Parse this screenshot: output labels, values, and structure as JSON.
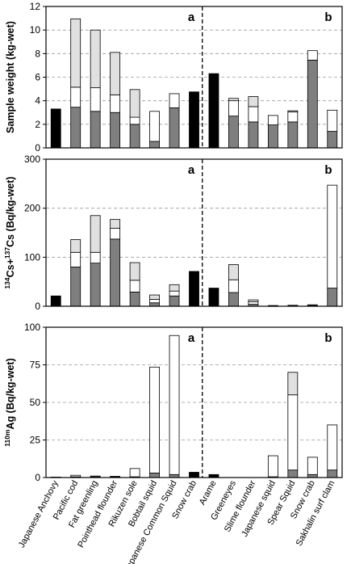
{
  "chart_data": [
    {
      "type": "bar",
      "stacked": true,
      "ylabel": "Sample weight (kg-wet)",
      "ylim": [
        0,
        12
      ],
      "yticks": [
        "0",
        "2",
        "4",
        "6",
        "8",
        "10",
        "12"
      ],
      "panel_labels": [
        "a",
        "b"
      ],
      "grid": "horizontal dashed",
      "series": [
        {
          "color": "#7f7f7f",
          "values": [
            3.3,
            3.45,
            3.1,
            3.0,
            2.0,
            0.55,
            3.4,
            4.75,
            6.3,
            2.7,
            2.2,
            1.95,
            2.2,
            7.45,
            1.4
          ]
        },
        {
          "color": "#ffffff",
          "values": [
            0,
            1.7,
            2.0,
            1.5,
            0.6,
            2.55,
            1.2,
            0,
            0,
            1.3,
            1.3,
            0.8,
            0.85,
            0.8,
            1.8
          ]
        },
        {
          "color": "#e0e0e0",
          "values": [
            0,
            5.8,
            4.9,
            3.6,
            2.35,
            0,
            0,
            0,
            0,
            0.2,
            0.85,
            0,
            0.1,
            0,
            0
          ]
        }
      ],
      "solid_black": [
        0,
        7,
        8
      ]
    },
    {
      "type": "bar",
      "stacked": true,
      "ylabel": "134Cs+137Cs (Bq/kg-wet)",
      "ylim": [
        0,
        300
      ],
      "yticks": [
        "0",
        "100",
        "200",
        "300"
      ],
      "panel_labels": [
        "a",
        "b"
      ],
      "grid": "horizontal dashed",
      "series": [
        {
          "color": "#7f7f7f",
          "values": [
            21,
            80,
            88,
            137,
            29,
            7,
            21,
            71,
            37,
            28,
            4,
            0.5,
            1,
            1.5,
            37
          ]
        },
        {
          "color": "#ffffff",
          "values": [
            0,
            30,
            22,
            22,
            24,
            7,
            10,
            0,
            0,
            26,
            5,
            1,
            1,
            1.5,
            210
          ]
        },
        {
          "color": "#e0e0e0",
          "values": [
            0,
            26,
            75,
            18,
            36,
            9,
            13,
            0,
            0,
            31,
            4,
            0,
            0,
            0,
            0
          ]
        }
      ],
      "solid_black": [
        0,
        7,
        8
      ]
    },
    {
      "type": "bar",
      "stacked": true,
      "ylabel": "110mAg (Bq/kg-wet)",
      "ylim": [
        0,
        100
      ],
      "yticks": [
        "0",
        "25",
        "50",
        "75",
        "100"
      ],
      "panel_labels": [
        "a",
        "b"
      ],
      "grid": "horizontal dashed",
      "categories": [
        "Japanese Anchovy",
        "Pacific cod",
        "Fat greenling",
        "Pointhead flounder",
        "Rikuzen sole",
        "Bobtail squid",
        "Japanese Common Squid",
        "Snow crab",
        "Arame",
        "Greeneyes",
        "Slime flounder",
        "Japanese squid",
        "Spear Squid",
        "Snow crab",
        "Sakhalin surf clam"
      ],
      "series": [
        {
          "color": "#7f7f7f",
          "values": [
            0.3,
            0.5,
            0.5,
            0.5,
            0.5,
            3,
            2,
            3.5,
            2,
            0,
            0,
            0.5,
            5,
            2,
            5
          ]
        },
        {
          "color": "#ffffff",
          "values": [
            0,
            1,
            0.5,
            0.3,
            5.5,
            70.5,
            92.5,
            0,
            0,
            0,
            0,
            14,
            50,
            11.5,
            30
          ]
        },
        {
          "color": "#e0e0e0",
          "values": [
            0,
            0,
            0,
            0,
            0,
            0,
            0,
            0,
            0,
            0,
            0,
            0,
            15,
            0,
            0
          ]
        }
      ],
      "solid_black": [
        0,
        7,
        8
      ]
    }
  ]
}
